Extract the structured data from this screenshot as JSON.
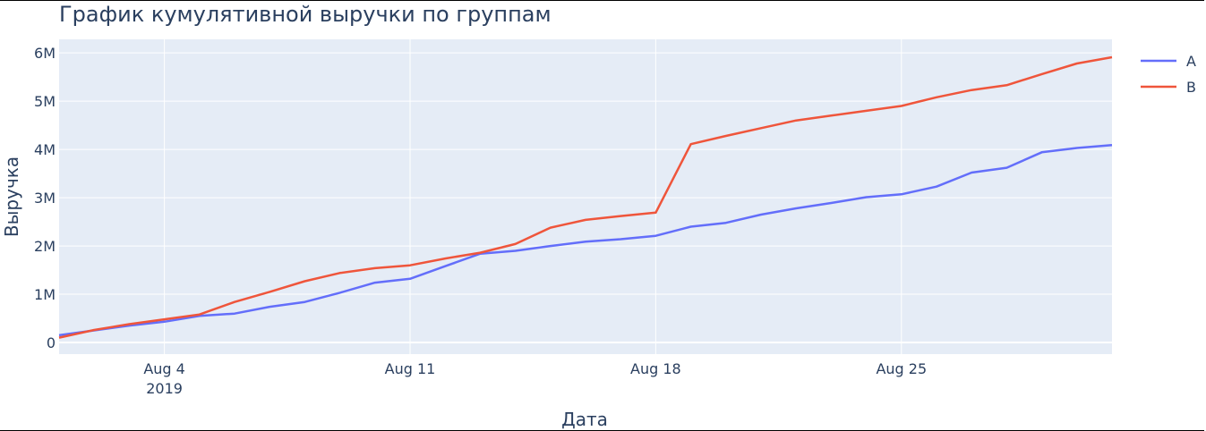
{
  "chart_data": {
    "type": "line",
    "title": "График кумулятивной выручки по группам",
    "xlabel": "Дата",
    "ylabel": "Выручка",
    "x": [
      "2019-08-01",
      "2019-08-02",
      "2019-08-03",
      "2019-08-04",
      "2019-08-05",
      "2019-08-06",
      "2019-08-07",
      "2019-08-08",
      "2019-08-09",
      "2019-08-10",
      "2019-08-11",
      "2019-08-12",
      "2019-08-13",
      "2019-08-14",
      "2019-08-15",
      "2019-08-16",
      "2019-08-17",
      "2019-08-18",
      "2019-08-19",
      "2019-08-20",
      "2019-08-21",
      "2019-08-22",
      "2019-08-23",
      "2019-08-24",
      "2019-08-25",
      "2019-08-26",
      "2019-08-27",
      "2019-08-28",
      "2019-08-29",
      "2019-08-30",
      "2019-08-31"
    ],
    "series": [
      {
        "name": "A",
        "color": "#636efa",
        "values": [
          150000,
          250000,
          350000,
          430000,
          550000,
          600000,
          740000,
          840000,
          1030000,
          1240000,
          1320000,
          1580000,
          1840000,
          1900000,
          2000000,
          2090000,
          2140000,
          2210000,
          2400000,
          2480000,
          2650000,
          2780000,
          2890000,
          3010000,
          3070000,
          3230000,
          3520000,
          3620000,
          3940000,
          4030000,
          4090000
        ]
      },
      {
        "name": "B",
        "color": "#ef553b",
        "values": [
          100000,
          260000,
          380000,
          480000,
          580000,
          840000,
          1050000,
          1270000,
          1440000,
          1540000,
          1600000,
          1740000,
          1860000,
          2040000,
          2380000,
          2540000,
          2620000,
          2690000,
          4110000,
          4280000,
          4440000,
          4600000,
          4700000,
          4800000,
          4900000,
          5080000,
          5230000,
          5330000,
          5560000,
          5780000,
          5910000
        ]
      }
    ],
    "ylim": [
      -240000,
      6280000
    ],
    "yticks": [
      {
        "label": "0",
        "value": 0
      },
      {
        "label": "1M",
        "value": 1000000
      },
      {
        "label": "2M",
        "value": 2000000
      },
      {
        "label": "3M",
        "value": 3000000
      },
      {
        "label": "4M",
        "value": 4000000
      },
      {
        "label": "5M",
        "value": 5000000
      },
      {
        "label": "6M",
        "value": 6000000
      }
    ],
    "xticks": [
      {
        "label": "Aug 4",
        "sublabel": "2019",
        "date": "2019-08-04"
      },
      {
        "label": "Aug 11",
        "sublabel": "",
        "date": "2019-08-11"
      },
      {
        "label": "Aug 18",
        "sublabel": "",
        "date": "2019-08-18"
      },
      {
        "label": "Aug 25",
        "sublabel": "",
        "date": "2019-08-25"
      }
    ],
    "grid": true,
    "legend_position": "top-right",
    "plot_background": "#e5ecf6"
  }
}
